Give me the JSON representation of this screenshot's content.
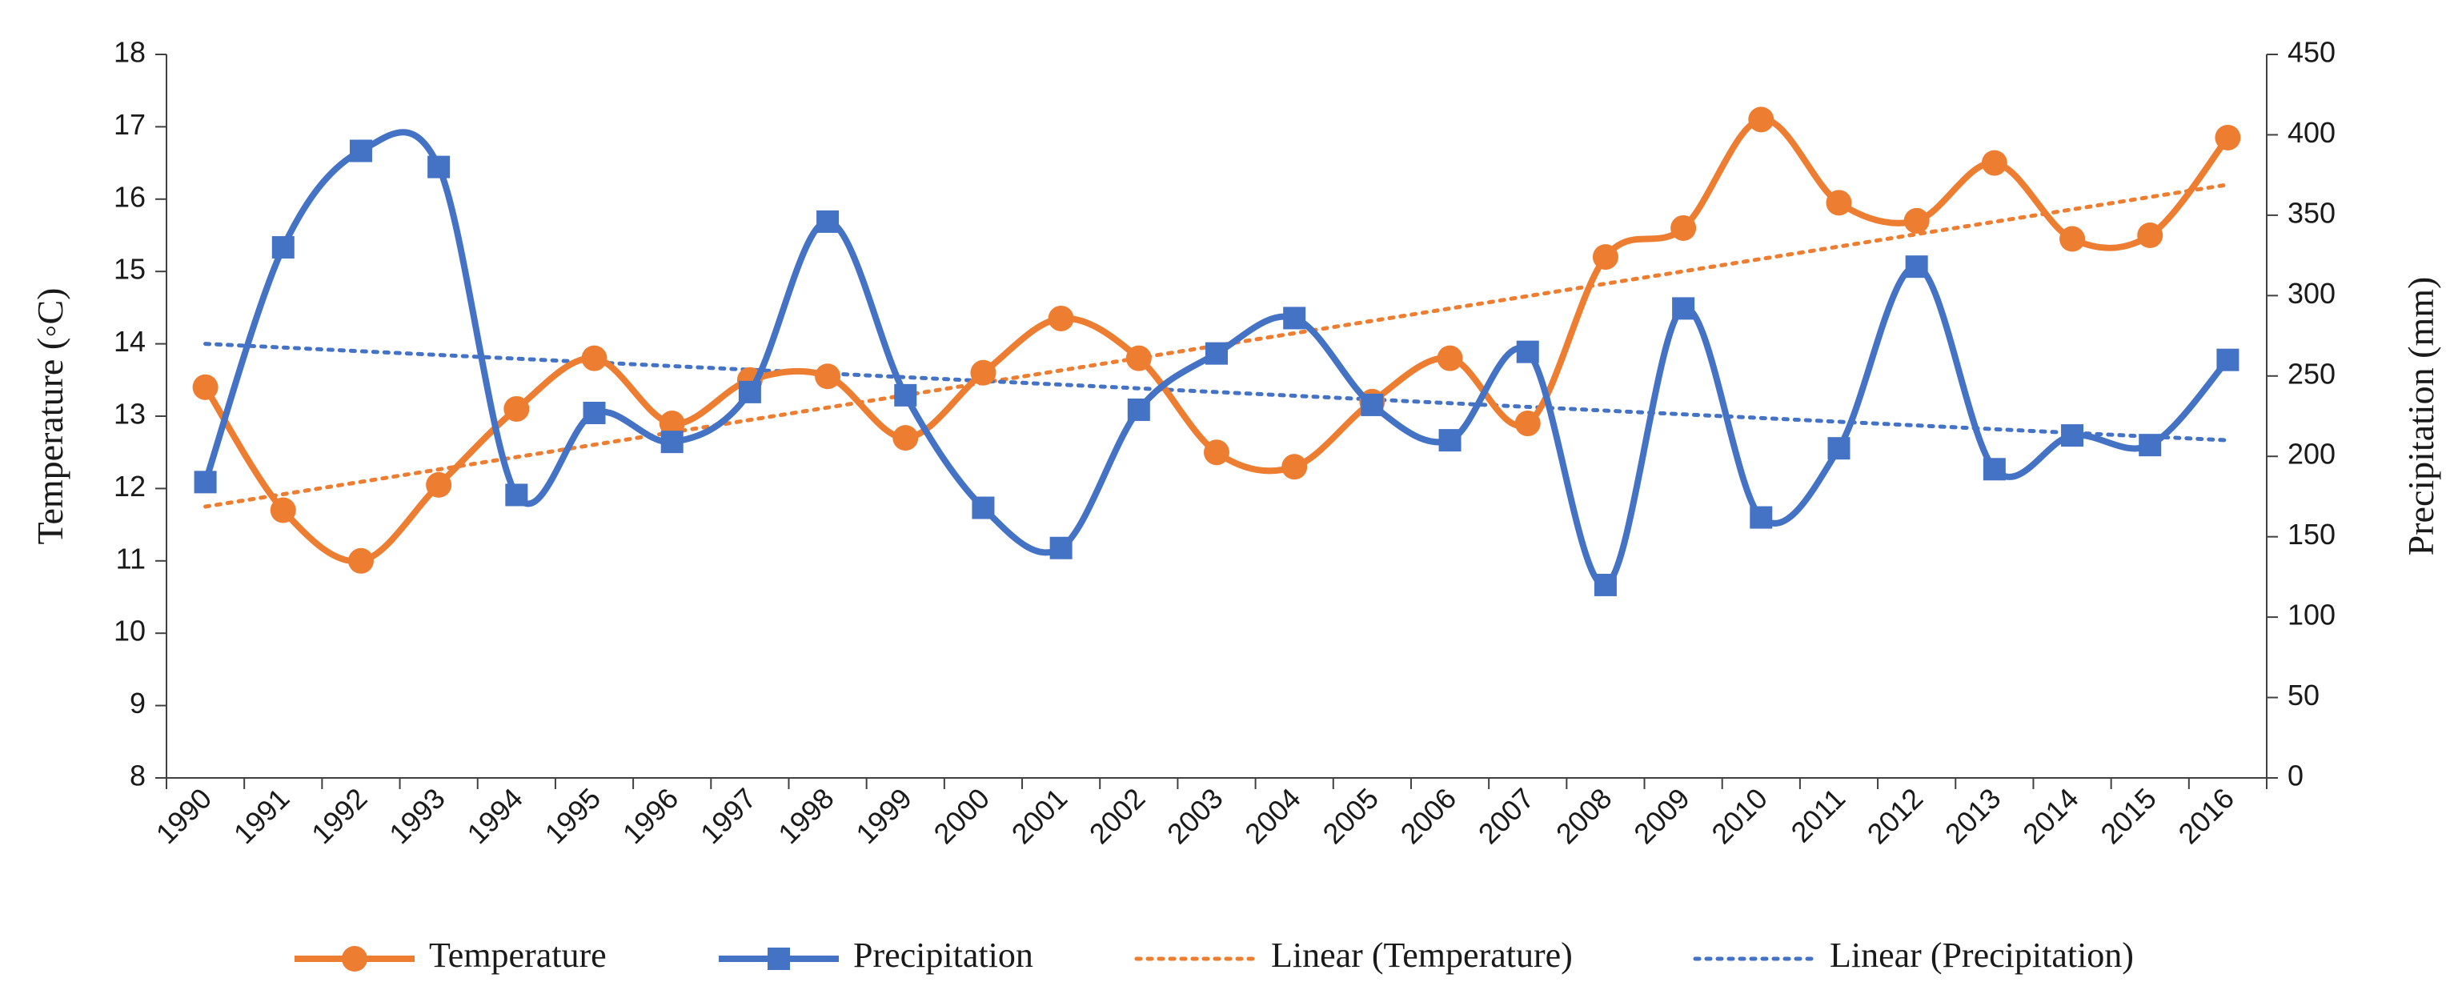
{
  "chart_data": {
    "type": "line",
    "categories": [
      "1990",
      "1991",
      "1992",
      "1993",
      "1994",
      "1995",
      "1996",
      "1997",
      "1998",
      "1999",
      "2000",
      "2001",
      "2002",
      "2003",
      "2004",
      "2005",
      "2006",
      "2007",
      "2008",
      "2009",
      "2010",
      "2011",
      "2012",
      "2013",
      "2014",
      "2015",
      "2016"
    ],
    "series": [
      {
        "name": "Temperature",
        "axis": "left",
        "color": "#ED7D31",
        "marker": "circle",
        "values": [
          13.4,
          11.7,
          11.0,
          12.05,
          13.1,
          13.8,
          12.9,
          13.5,
          13.55,
          12.7,
          13.6,
          14.35,
          13.8,
          12.5,
          12.3,
          13.2,
          13.8,
          12.9,
          15.2,
          15.6,
          17.1,
          15.95,
          15.7,
          16.5,
          15.45,
          15.5,
          16.85
        ]
      },
      {
        "name": "Precipitation",
        "axis": "right",
        "color": "#4472C4",
        "marker": "square",
        "values": [
          184,
          330,
          390,
          380,
          176,
          227,
          209,
          240,
          346,
          238,
          168,
          143,
          229,
          264,
          286,
          232,
          210,
          265,
          120,
          292,
          162,
          205,
          318,
          192,
          213,
          207,
          260
        ]
      }
    ],
    "trendlines": [
      {
        "name": "Linear (Temperature)",
        "color": "#ED7D31",
        "axis": "left",
        "start": 11.75,
        "end": 16.2
      },
      {
        "name": "Linear (Precipitation)",
        "color": "#4472C4",
        "axis": "right",
        "start": 270,
        "end": 210
      }
    ],
    "ylabel_left": "Temperature (◦C)",
    "ylabel_right": "Precipitation (mm)",
    "ylim_left": [
      8,
      18
    ],
    "ylim_right": [
      0,
      450
    ],
    "yticks_left": [
      "18",
      "17",
      "16",
      "15",
      "14",
      "13",
      "12",
      "11",
      "10",
      "9",
      "8"
    ],
    "yticks_right": [
      "450",
      "400",
      "350",
      "300",
      "250",
      "200",
      "150",
      "100",
      "50",
      "0"
    ],
    "legend": [
      "Temperature",
      "Precipitation",
      "Linear (Temperature)",
      "Linear (Precipitation)"
    ],
    "legend_position": "bottom",
    "grid": false
  }
}
